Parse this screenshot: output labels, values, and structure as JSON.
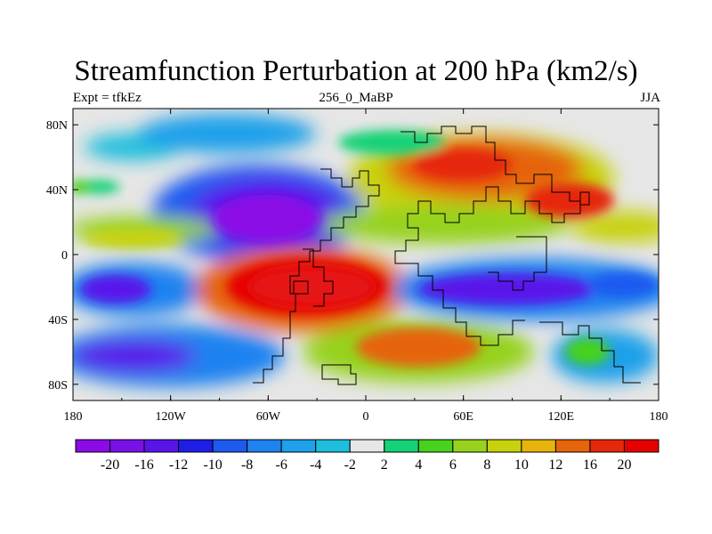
{
  "title": "Streamfunction Perturbation at 200 hPa (km2/s)",
  "left_string": "Expt = tfkEz",
  "center_string": "256_0_MaBP",
  "right_string": "JJA",
  "axes": {
    "lon_range": [
      -180,
      180
    ],
    "lat_range": [
      -90,
      90
    ],
    "x_ticks": [
      {
        "value": -180,
        "label": "180"
      },
      {
        "value": -120,
        "label": "120W"
      },
      {
        "value": -60,
        "label": "60W"
      },
      {
        "value": 0,
        "label": "0"
      },
      {
        "value": 60,
        "label": "60E"
      },
      {
        "value": 120,
        "label": "120E"
      },
      {
        "value": 180,
        "label": "180"
      }
    ],
    "y_ticks": [
      {
        "value": 80,
        "label": "80N"
      },
      {
        "value": 40,
        "label": "40N"
      },
      {
        "value": 0,
        "label": "0"
      },
      {
        "value": -40,
        "label": "40S"
      },
      {
        "value": -80,
        "label": "80S"
      }
    ]
  },
  "colorbar": {
    "levels": [
      "-20",
      "-16",
      "-12",
      "-10",
      "-8",
      "-6",
      "-4",
      "-2",
      "2",
      "4",
      "6",
      "8",
      "10",
      "12",
      "16",
      "20"
    ],
    "colors": [
      "#8c0ae6",
      "#7a10e8",
      "#5a14ea",
      "#1e1ee6",
      "#1e5af0",
      "#1e82f0",
      "#1ea0ea",
      "#1ebedc",
      "#e6e6e6",
      "#14d278",
      "#46d21e",
      "#96d21e",
      "#c8d20a",
      "#e6b40a",
      "#e6640a",
      "#e6280a",
      "#e60000"
    ]
  },
  "field_cells": [
    {
      "lon": -170,
      "lat": 70,
      "band": 8
    },
    {
      "lon": -170,
      "lat": 50,
      "band": 10
    },
    {
      "lon": -170,
      "lat": 10,
      "band": 10
    },
    {
      "lon": -170,
      "lat": -20,
      "band": 3
    },
    {
      "lon": -170,
      "lat": -60,
      "band": 2
    },
    {
      "lon": -100,
      "lat": 30,
      "band": 0
    },
    {
      "lon": -60,
      "lat": 60,
      "band": 3
    },
    {
      "lon": -60,
      "lat": -10,
      "band": 16
    },
    {
      "lon": -15,
      "lat": -20,
      "band": 16
    },
    {
      "lon": 0,
      "lat": 70,
      "band": 8
    },
    {
      "lon": 40,
      "lat": 70,
      "band": 8
    },
    {
      "lon": 50,
      "lat": 55,
      "band": 15
    },
    {
      "lon": 100,
      "lat": 45,
      "band": 15
    },
    {
      "lon": 60,
      "lat": 15,
      "band": 12
    },
    {
      "lon": 130,
      "lat": 20,
      "band": 12
    },
    {
      "lon": 70,
      "lat": -20,
      "band": 3
    },
    {
      "lon": 120,
      "lat": -30,
      "band": 0
    },
    {
      "lon": 170,
      "lat": -20,
      "band": 2
    },
    {
      "lon": 30,
      "lat": -55,
      "band": 14
    },
    {
      "lon": -100,
      "lat": -60,
      "band": 2
    },
    {
      "lon": 150,
      "lat": -60,
      "band": 3
    }
  ]
}
